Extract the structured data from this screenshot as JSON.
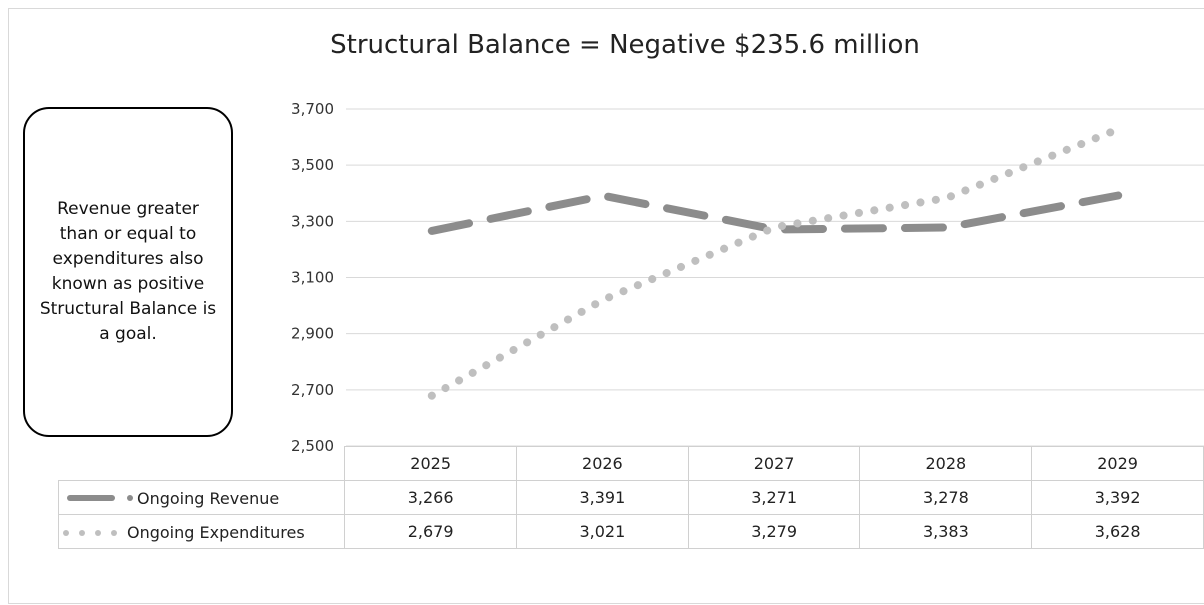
{
  "chart_data": {
    "type": "line",
    "title": "Structural Balance = Negative $235.6 million",
    "categories": [
      "2025",
      "2026",
      "2027",
      "2028",
      "2029"
    ],
    "ylim": [
      2500,
      3700
    ],
    "yticks": [
      "3,700",
      "3,500",
      "3,300",
      "3,100",
      "2,900",
      "2,700",
      "2,500"
    ],
    "ytick_values": [
      3700,
      3500,
      3300,
      3100,
      2900,
      2700,
      2500
    ],
    "grid": true,
    "legend": "data-table",
    "series": [
      {
        "name": "Ongoing Revenue",
        "values": [
          3266,
          3391,
          3271,
          3278,
          3392
        ],
        "labels": [
          "3,266",
          "3,391",
          "3,271",
          "3,278",
          "3,392"
        ],
        "color": "#8c8c8c",
        "style": "long-dash"
      },
      {
        "name": "Ongoing Expenditures",
        "values": [
          2679,
          3021,
          3279,
          3383,
          3628
        ],
        "labels": [
          "2,679",
          "3,021",
          "3,279",
          "3,383",
          "3,628"
        ],
        "color": "#bfbfbf",
        "style": "round-dot"
      }
    ]
  },
  "note": "Revenue greater than or equal to expenditures also known as positive Structural Balance is a goal."
}
